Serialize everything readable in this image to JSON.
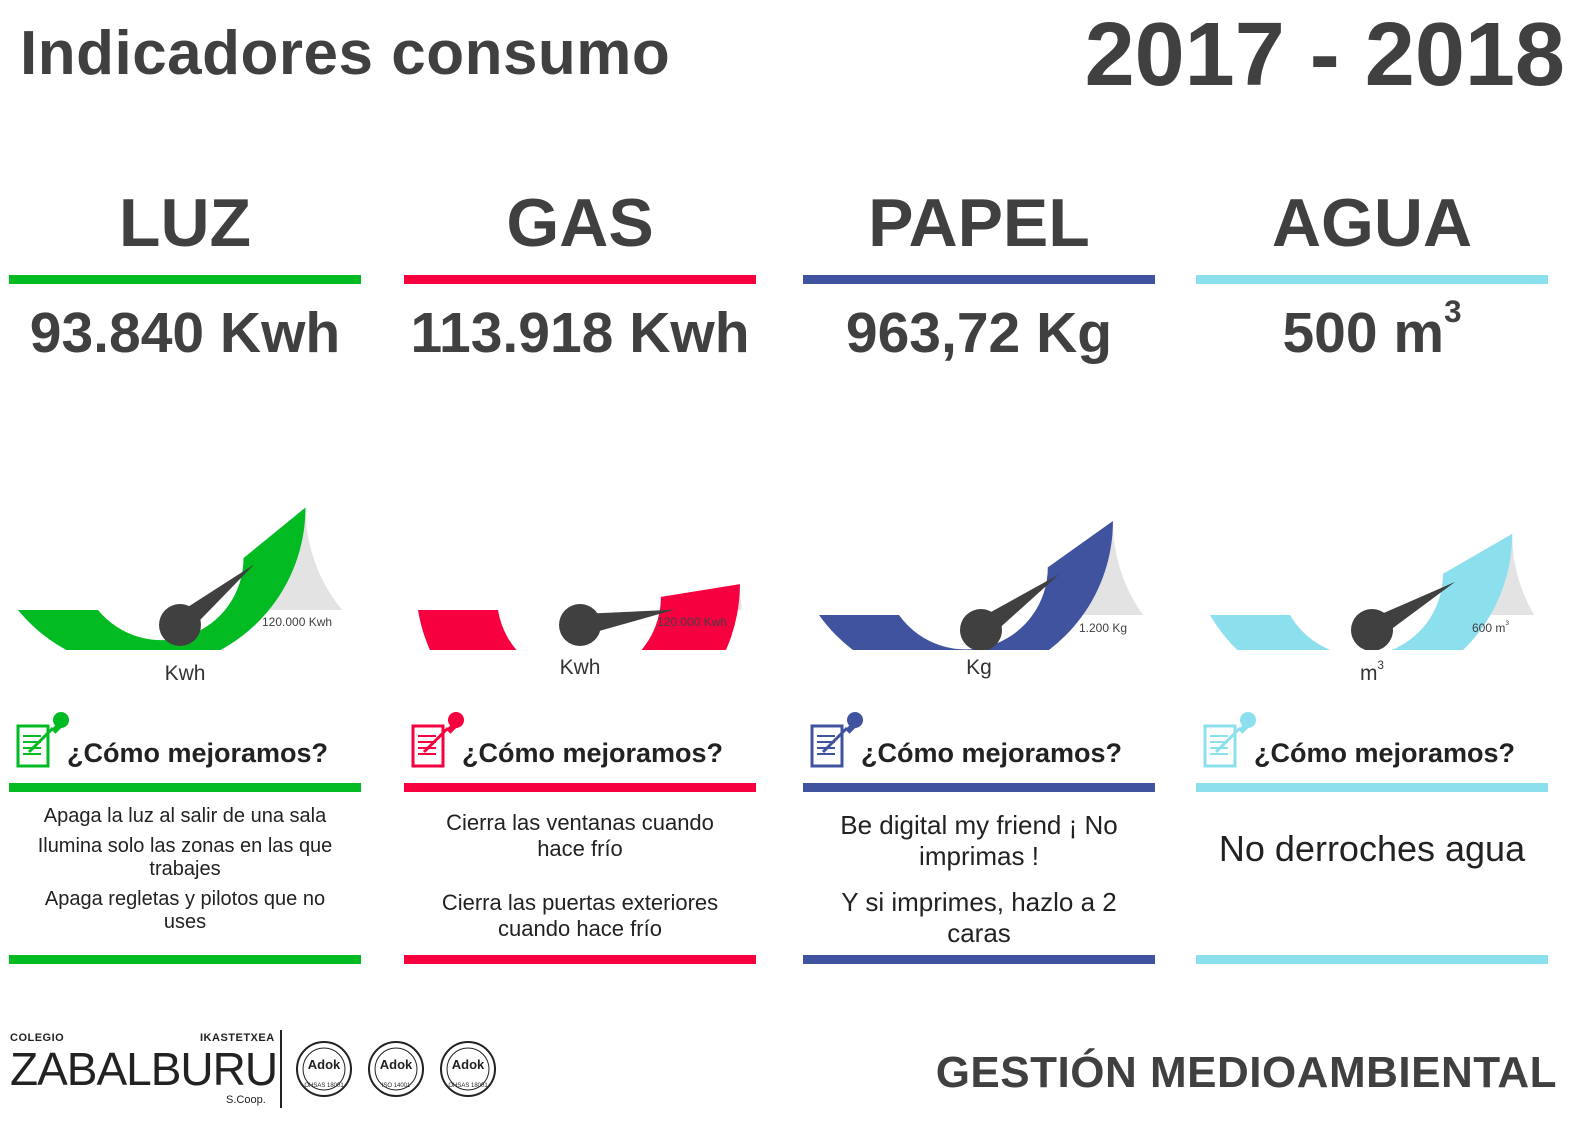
{
  "header": {
    "title": "Indicadores consumo",
    "year": "2017 - 2018"
  },
  "tips_heading": "¿Cómo mejoramos?",
  "columns": [
    {
      "name": "LUZ",
      "color": "#02bb22",
      "value": "93.840 Kwh",
      "value_sup": "",
      "unit": "Kwh",
      "unit_sup": "",
      "max_label": "120.000 Kwh",
      "max_sup": "",
      "fraction": 0.782,
      "tips": [
        "Apaga la luz al salir de una sala",
        "Ilumina solo las zonas en las que trabajes",
        "Apaga regletas y pilotos que no uses"
      ]
    },
    {
      "name": "GAS",
      "color": "#f70040",
      "value": "113.918 Kwh",
      "value_sup": "",
      "unit": "Kwh",
      "unit_sup": "",
      "max_label": "120.000 Kwh",
      "max_sup": "",
      "fraction": 0.949,
      "tips": [
        "Cierra las ventanas cuando hace frío",
        "Cierra las puertas exteriores cuando hace frío"
      ]
    },
    {
      "name": "PAPEL",
      "color": "#40539f",
      "value": "963,72 Kg",
      "value_sup": "",
      "unit": "Kg",
      "unit_sup": "",
      "max_label": "1.200 Kg",
      "max_sup": "",
      "fraction": 0.803,
      "tips": [
        "Be digital my friend ¡ No imprimas !",
        "Y si imprimes, hazlo a 2 caras"
      ]
    },
    {
      "name": "AGUA",
      "color": "#8ce0ed",
      "value": "500 m",
      "value_sup": "3",
      "unit": "m",
      "unit_sup": "3",
      "max_label": "600 m",
      "max_sup": "3",
      "fraction": 0.833,
      "tips": [
        "No derroches agua"
      ]
    }
  ],
  "footer": {
    "colegio": "COLEGIO",
    "ikastetxea": "IKASTETXEA",
    "brand": "ZABALBURU",
    "scoop": "S.Coop.",
    "seals": [
      {
        "logo": "Adok",
        "label": "OHSAS 18001"
      },
      {
        "logo": "Adok",
        "label": "ISO 14001"
      },
      {
        "logo": "Adok",
        "label": "OHSAS 18001"
      }
    ],
    "section": "GESTIÓN MEDIOAMBIENTAL"
  }
}
